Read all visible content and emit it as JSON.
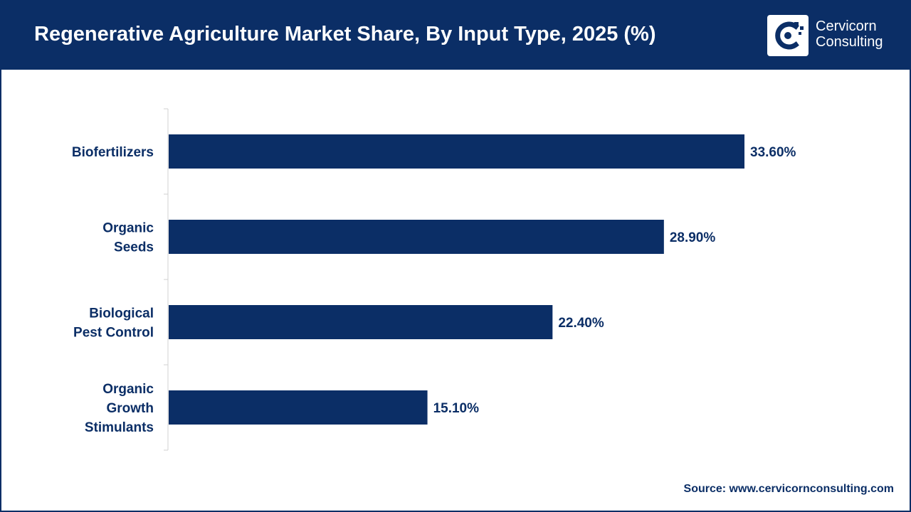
{
  "header": {
    "title": "Regenerative Agriculture Market Share, By Input Type, 2025 (%)",
    "logo_line1": "Cervicorn",
    "logo_line2": "Consulting"
  },
  "source": "Source: www.cervicornconsulting.com",
  "colors": {
    "brand": "#0b2e66",
    "bar": "#0b2e66",
    "axis": "#d0d0d0"
  },
  "chart_data": {
    "type": "bar",
    "orientation": "horizontal",
    "categories": [
      [
        "Biofertilizers"
      ],
      [
        "Organic",
        "Seeds"
      ],
      [
        "Biological",
        "Pest Control"
      ],
      [
        "Organic",
        "Growth",
        "Stimulants"
      ]
    ],
    "values": [
      33.6,
      28.9,
      22.4,
      15.1
    ],
    "data_labels": [
      "33.60%",
      "28.90%",
      "22.40%",
      "15.10%"
    ],
    "xlim": [
      0,
      40
    ],
    "grid": false,
    "legend": "none"
  }
}
